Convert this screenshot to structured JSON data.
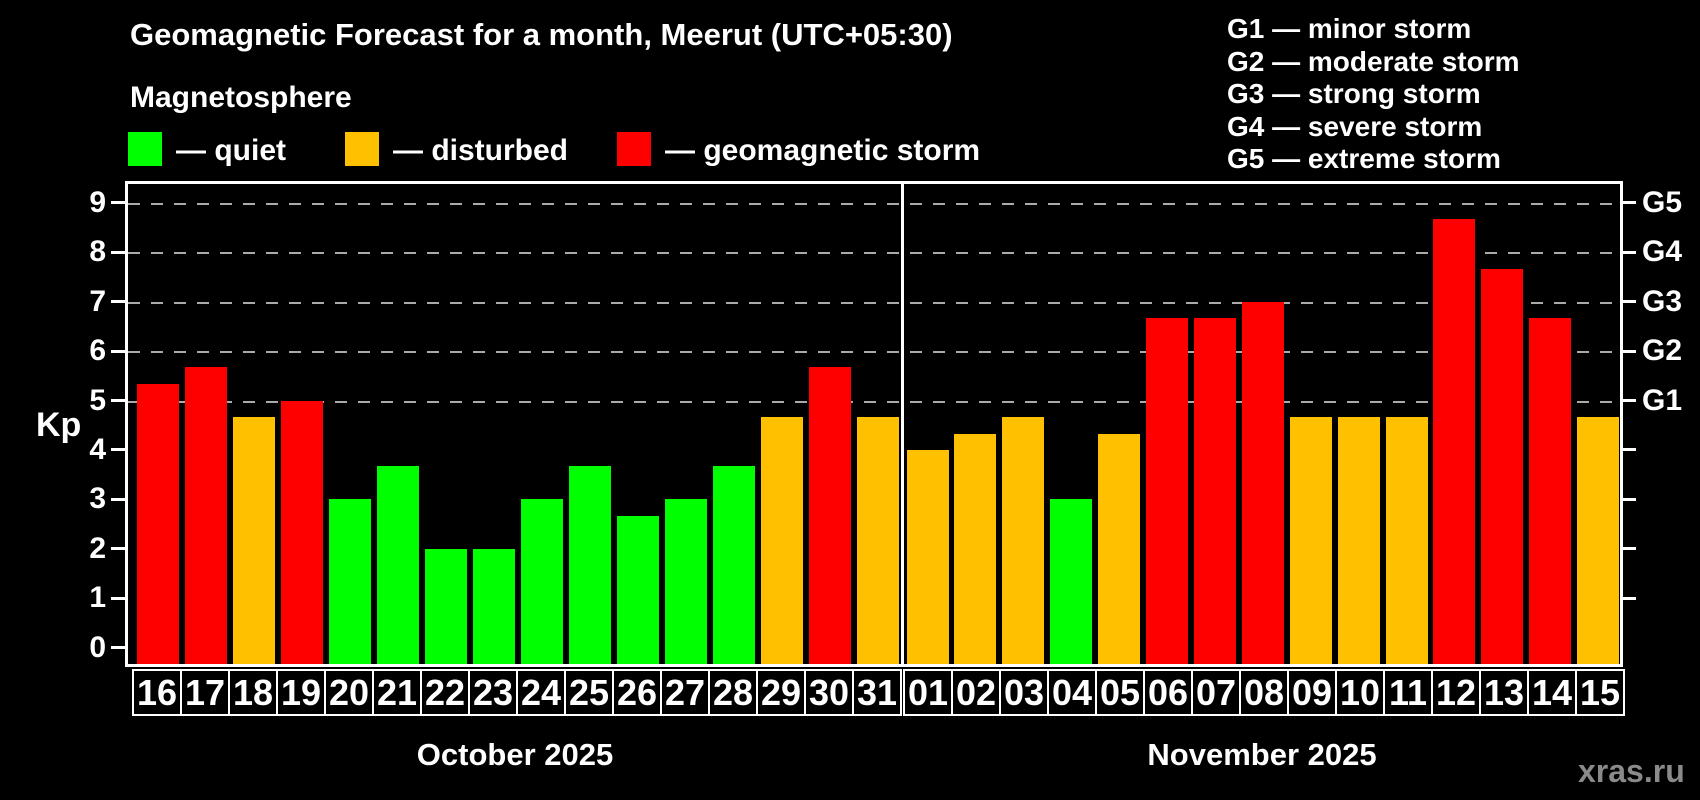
{
  "header": {
    "title": "Geomagnetic Forecast for a month, Meerut (UTC+05:30)",
    "subtitle": "Magnetosphere"
  },
  "legend": {
    "items": [
      {
        "key": "quiet",
        "label": "— quiet",
        "color": "#00ff00"
      },
      {
        "key": "disturbed",
        "label": "— disturbed",
        "color": "#ffc000"
      },
      {
        "key": "storm",
        "label": "— geomagnetic storm",
        "color": "#ff0000"
      }
    ]
  },
  "g_legend": {
    "items": [
      "G1 — minor storm",
      "G2 — moderate storm",
      "G3 — strong storm",
      "G4 — severe storm",
      "G5 — extreme storm"
    ]
  },
  "axes": {
    "y_title": "Kp",
    "y_ticks": [
      0,
      1,
      2,
      3,
      4,
      5,
      6,
      7,
      8,
      9
    ],
    "right_ticks": [
      1,
      2,
      3,
      4,
      5,
      6,
      7,
      8,
      9
    ],
    "right_labels": [
      {
        "label": "G1",
        "kp": 5
      },
      {
        "label": "G2",
        "kp": 6
      },
      {
        "label": "G3",
        "kp": 7
      },
      {
        "label": "G4",
        "kp": 8
      },
      {
        "label": "G5",
        "kp": 9
      }
    ]
  },
  "watermark": "xras.ru",
  "colors": {
    "background": "#000000",
    "grid": "#aaaaaa",
    "axis": "#ffffff",
    "quiet": "#00ff00",
    "disturbed": "#ffc000",
    "storm": "#ff0000"
  },
  "chart_data": {
    "type": "bar",
    "title": "Geomagnetic Forecast for a month, Meerut (UTC+05:30)",
    "subtitle": "Magnetosphere",
    "ylabel": "Kp",
    "ylim": [
      0,
      9.4
    ],
    "gridlines_at": [
      5,
      6,
      7,
      8,
      9
    ],
    "grid": "dashed horizontal at storm levels G1–G5",
    "legend_position": "top",
    "level_colors": {
      "quiet": "#00ff00",
      "disturbed": "#ffc000",
      "storm": "#ff0000"
    },
    "months": [
      {
        "label": "October 2025",
        "days": [
          "16",
          "17",
          "18",
          "19",
          "20",
          "21",
          "22",
          "23",
          "24",
          "25",
          "26",
          "27",
          "28",
          "29",
          "30",
          "31"
        ],
        "values": [
          5.33,
          5.67,
          4.67,
          5.0,
          3.0,
          3.67,
          2.0,
          2.0,
          3.0,
          3.67,
          2.67,
          3.0,
          3.67,
          4.67,
          5.67,
          4.67
        ],
        "levels": [
          "storm",
          "storm",
          "disturbed",
          "storm",
          "quiet",
          "quiet",
          "quiet",
          "quiet",
          "quiet",
          "quiet",
          "quiet",
          "quiet",
          "quiet",
          "disturbed",
          "storm",
          "disturbed"
        ]
      },
      {
        "label": "November 2025",
        "days": [
          "01",
          "02",
          "03",
          "04",
          "05",
          "06",
          "07",
          "08",
          "09",
          "10",
          "11",
          "12",
          "13",
          "14",
          "15"
        ],
        "values": [
          4.0,
          4.33,
          4.67,
          3.0,
          4.33,
          6.67,
          6.67,
          7.0,
          4.67,
          4.67,
          4.67,
          8.67,
          7.67,
          6.67,
          4.67
        ],
        "levels": [
          "disturbed",
          "disturbed",
          "disturbed",
          "quiet",
          "disturbed",
          "storm",
          "storm",
          "storm",
          "disturbed",
          "disturbed",
          "disturbed",
          "storm",
          "storm",
          "storm",
          "disturbed"
        ]
      }
    ]
  }
}
